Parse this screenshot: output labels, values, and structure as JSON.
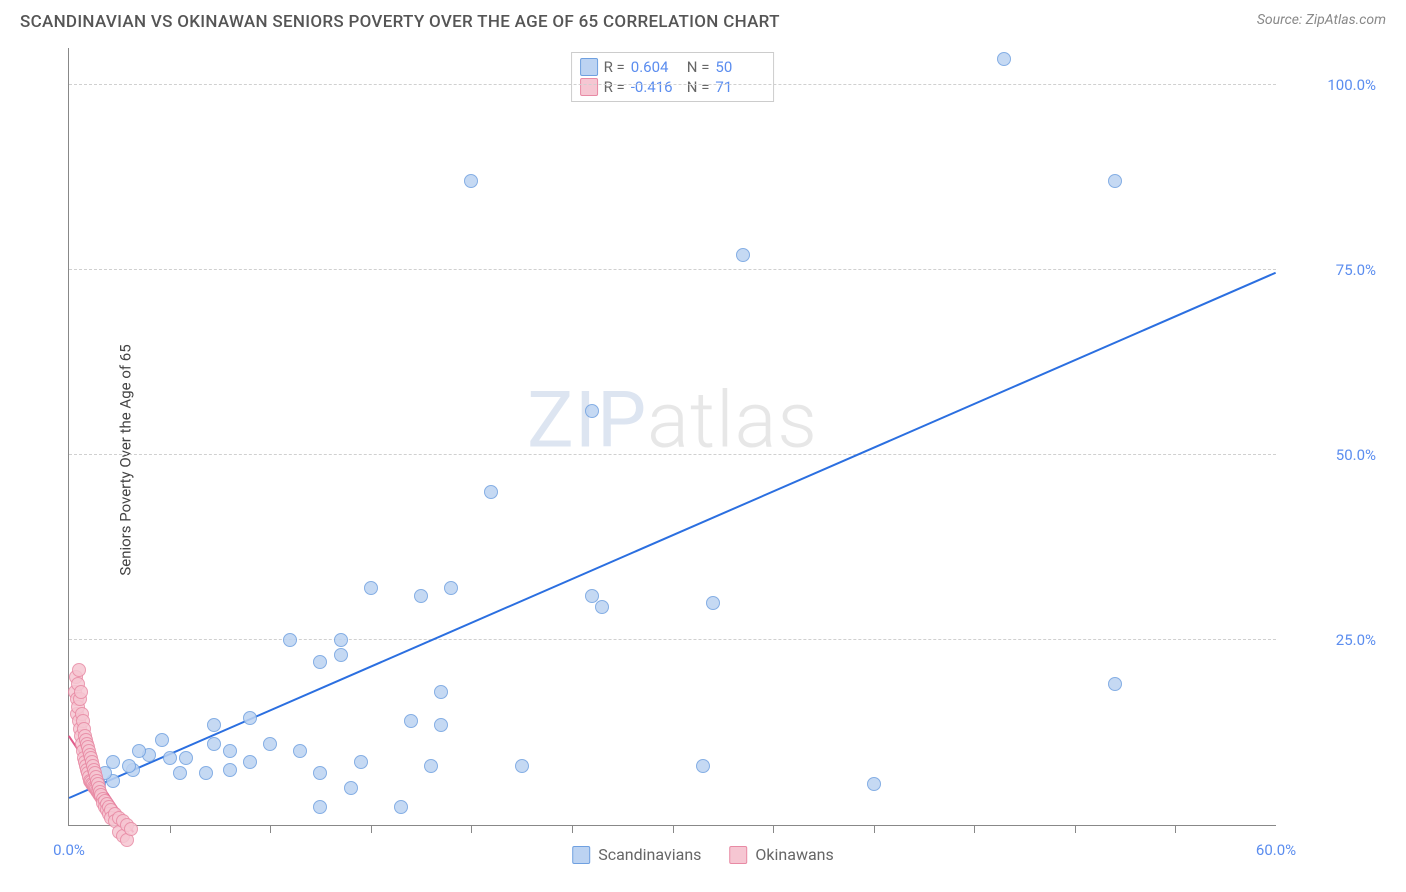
{
  "header": {
    "title": "SCANDINAVIAN VS OKINAWAN SENIORS POVERTY OVER THE AGE OF 65 CORRELATION CHART",
    "source_prefix": "Source: ",
    "source_name": "ZipAtlas.com"
  },
  "ylabel": "Seniors Poverty Over the Age of 65",
  "watermark": {
    "lead": "ZIP",
    "rest": "atlas"
  },
  "chart": {
    "type": "scatter",
    "background_color": "#ffffff",
    "grid_color": "#d0d0d0",
    "axis_color": "#888888",
    "tick_label_color": "#5b8def",
    "xlim": [
      0,
      60
    ],
    "ylim": [
      0,
      105
    ],
    "y_gridlines": [
      25,
      50,
      75,
      100
    ],
    "y_tick_labels": [
      "25.0%",
      "50.0%",
      "75.0%",
      "100.0%"
    ],
    "x_ticks_minor": [
      5,
      10,
      15,
      20,
      25,
      30,
      35,
      40,
      45,
      50,
      55
    ],
    "x_tick_labels": [
      {
        "x": 0,
        "label": "0.0%"
      },
      {
        "x": 60,
        "label": "60.0%"
      }
    ],
    "marker_radius": 7,
    "series": [
      {
        "name": "Scandinavians",
        "fill": "#bcd3f2",
        "stroke": "#6fa0e0",
        "R": "0.604",
        "N": "50",
        "regression": {
          "color": "#2b6fe0",
          "width": 2,
          "x1": 0,
          "y1": 3.5,
          "x2": 60,
          "y2": 74.5
        },
        "points": [
          [
            46.5,
            103.5
          ],
          [
            52,
            87
          ],
          [
            20,
            87
          ],
          [
            33.5,
            77
          ],
          [
            26,
            56
          ],
          [
            21,
            45
          ],
          [
            52,
            19
          ],
          [
            40,
            5.5
          ],
          [
            31.5,
            8
          ],
          [
            22.5,
            8
          ],
          [
            12.5,
            22
          ],
          [
            13.5,
            25
          ],
          [
            13.5,
            23
          ],
          [
            15,
            32
          ],
          [
            19,
            32
          ],
          [
            26,
            31
          ],
          [
            26.5,
            29.5
          ],
          [
            32,
            30
          ],
          [
            17.5,
            31
          ],
          [
            14.5,
            8.5
          ],
          [
            14,
            5
          ],
          [
            16.5,
            2.5
          ],
          [
            17,
            14
          ],
          [
            18,
            8
          ],
          [
            18.5,
            13.5
          ],
          [
            18.5,
            18
          ],
          [
            11.5,
            10
          ],
          [
            11,
            25
          ],
          [
            12.5,
            7
          ],
          [
            12.5,
            2.5
          ],
          [
            10,
            11
          ],
          [
            9,
            8.5
          ],
          [
            9,
            14.5
          ],
          [
            8,
            10
          ],
          [
            8,
            7.5
          ],
          [
            6.8,
            7
          ],
          [
            7.2,
            11
          ],
          [
            7.2,
            13.5
          ],
          [
            5.8,
            9
          ],
          [
            5.5,
            7
          ],
          [
            5,
            9
          ],
          [
            4.6,
            11.5
          ],
          [
            4,
            9.5
          ],
          [
            3.5,
            10
          ],
          [
            3.2,
            7.5
          ],
          [
            3,
            8
          ],
          [
            2.2,
            6
          ],
          [
            2.2,
            8.5
          ],
          [
            1.8,
            7
          ],
          [
            1.5,
            5.5
          ]
        ]
      },
      {
        "name": "Okinawans",
        "fill": "#f6c6d2",
        "stroke": "#e88aa4",
        "R": "-0.416",
        "N": "71",
        "regression": {
          "color": "#e05a8a",
          "width": 1.5,
          "x1": 0,
          "y1": 12,
          "x2": 3.2,
          "y2": -1
        },
        "points": [
          [
            0.3,
            18
          ],
          [
            0.35,
            20
          ],
          [
            0.4,
            17
          ],
          [
            0.4,
            15
          ],
          [
            0.45,
            19
          ],
          [
            0.45,
            16
          ],
          [
            0.5,
            14
          ],
          [
            0.5,
            21
          ],
          [
            0.55,
            13
          ],
          [
            0.55,
            17
          ],
          [
            0.6,
            12
          ],
          [
            0.6,
            18
          ],
          [
            0.65,
            11
          ],
          [
            0.65,
            15
          ],
          [
            0.7,
            10
          ],
          [
            0.7,
            14
          ],
          [
            0.75,
            9
          ],
          [
            0.75,
            13
          ],
          [
            0.8,
            8.5
          ],
          [
            0.8,
            12
          ],
          [
            0.85,
            8
          ],
          [
            0.85,
            11.5
          ],
          [
            0.9,
            7.5
          ],
          [
            0.9,
            11
          ],
          [
            0.95,
            7
          ],
          [
            0.95,
            10.5
          ],
          [
            1.0,
            6.5
          ],
          [
            1.0,
            10
          ],
          [
            1.05,
            6
          ],
          [
            1.05,
            9.5
          ],
          [
            1.1,
            5.8
          ],
          [
            1.1,
            9
          ],
          [
            1.15,
            5.6
          ],
          [
            1.15,
            8.5
          ],
          [
            1.2,
            5.4
          ],
          [
            1.2,
            8
          ],
          [
            1.25,
            5.2
          ],
          [
            1.25,
            7.5
          ],
          [
            1.3,
            5
          ],
          [
            1.3,
            7
          ],
          [
            1.35,
            4.8
          ],
          [
            1.35,
            6.5
          ],
          [
            1.4,
            4.6
          ],
          [
            1.4,
            6
          ],
          [
            1.45,
            4.4
          ],
          [
            1.45,
            5.5
          ],
          [
            1.5,
            4.2
          ],
          [
            1.5,
            5
          ],
          [
            1.55,
            4
          ],
          [
            1.55,
            4.5
          ],
          [
            1.6,
            3.8
          ],
          [
            1.6,
            4
          ],
          [
            1.7,
            3.5
          ],
          [
            1.7,
            3.0
          ],
          [
            1.8,
            3.2
          ],
          [
            1.8,
            2.5
          ],
          [
            1.9,
            2.8
          ],
          [
            1.9,
            2.0
          ],
          [
            2.0,
            2.4
          ],
          [
            2.0,
            1.5
          ],
          [
            2.1,
            2.0
          ],
          [
            2.1,
            1.0
          ],
          [
            2.3,
            1.5
          ],
          [
            2.3,
            0.5
          ],
          [
            2.5,
            1.0
          ],
          [
            2.5,
            -1.0
          ],
          [
            2.7,
            0.5
          ],
          [
            2.7,
            -1.5
          ],
          [
            2.9,
            0.0
          ],
          [
            2.9,
            -2.0
          ],
          [
            3.1,
            -0.5
          ]
        ]
      }
    ]
  },
  "statbox": {
    "r_prefix": "R =",
    "n_prefix": "N ="
  },
  "legend": {
    "items": [
      {
        "label": "Scandinavians",
        "fill": "#bcd3f2",
        "stroke": "#6fa0e0"
      },
      {
        "label": "Okinawans",
        "fill": "#f6c6d2",
        "stroke": "#e88aa4"
      }
    ]
  }
}
